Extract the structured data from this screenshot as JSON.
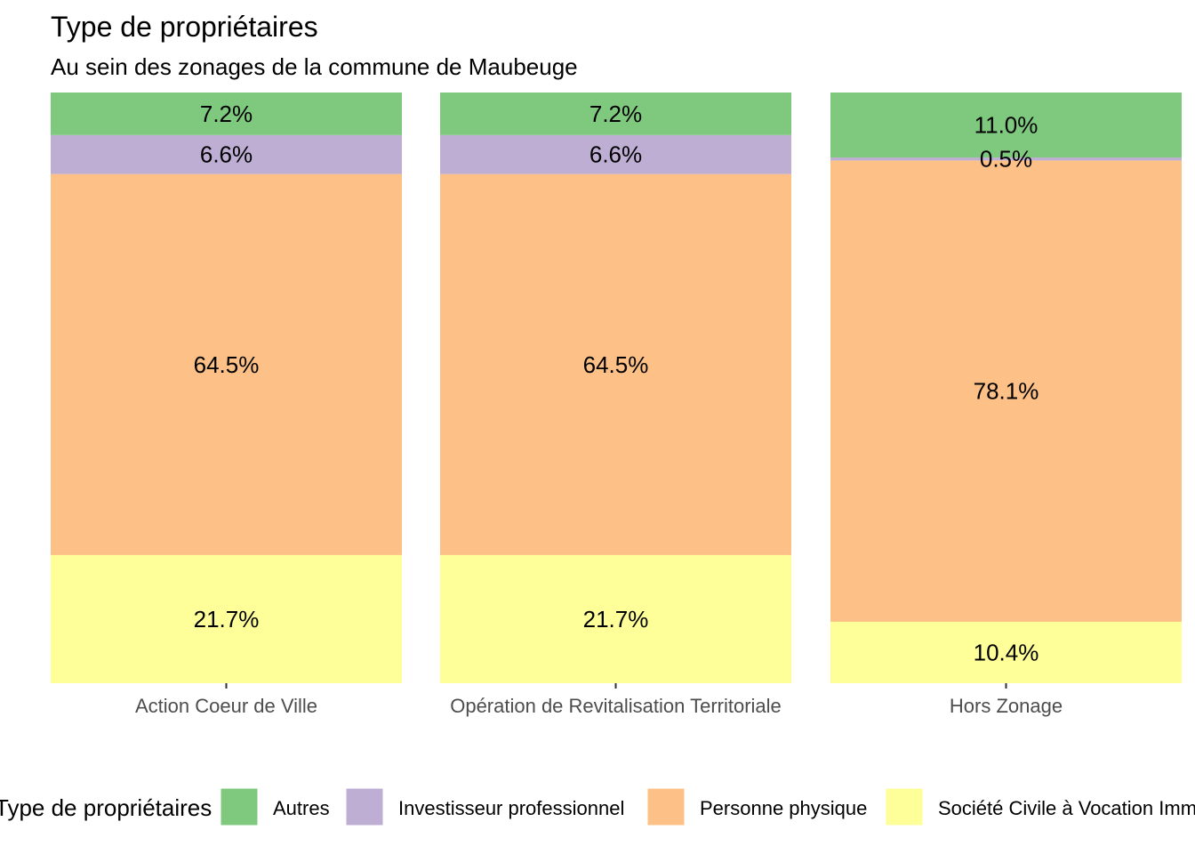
{
  "chart_data": {
    "type": "bar",
    "stacked": true,
    "title": "Type de propriétaires",
    "subtitle": "Au sein des zonages de la commune de Maubeuge",
    "xlabel": "",
    "ylabel": "",
    "ylim": [
      0,
      100
    ],
    "grid": false,
    "legend_position": "bottom",
    "legend_title": "Type de propriétaires",
    "categories": [
      "Action Coeur de Ville",
      "Opération de Revitalisation Territoriale",
      "Hors Zonage"
    ],
    "series": [
      {
        "name": "Société Civile à Vocation Immobilière",
        "color": "#FFFF99",
        "values": [
          21.7,
          21.7,
          10.4
        ],
        "labels": [
          "21.7%",
          "21.7%",
          "10.4%"
        ]
      },
      {
        "name": "Personne physique",
        "color": "#FDC086",
        "values": [
          64.5,
          64.5,
          78.1
        ],
        "labels": [
          "64.5%",
          "64.5%",
          "78.1%"
        ]
      },
      {
        "name": "Investisseur professionnel",
        "color": "#BEAED4",
        "values": [
          6.6,
          6.6,
          0.5
        ],
        "labels": [
          "6.6%",
          "6.6%",
          "0.5%"
        ]
      },
      {
        "name": "Autres",
        "color": "#7FC97F",
        "values": [
          7.2,
          7.2,
          11.0
        ],
        "labels": [
          "7.2%",
          "7.2%",
          "11.0%"
        ]
      }
    ],
    "legend_order": [
      "Autres",
      "Investisseur professionnel",
      "Personne physique",
      "Société Civile à Vocation Immobilière"
    ]
  }
}
